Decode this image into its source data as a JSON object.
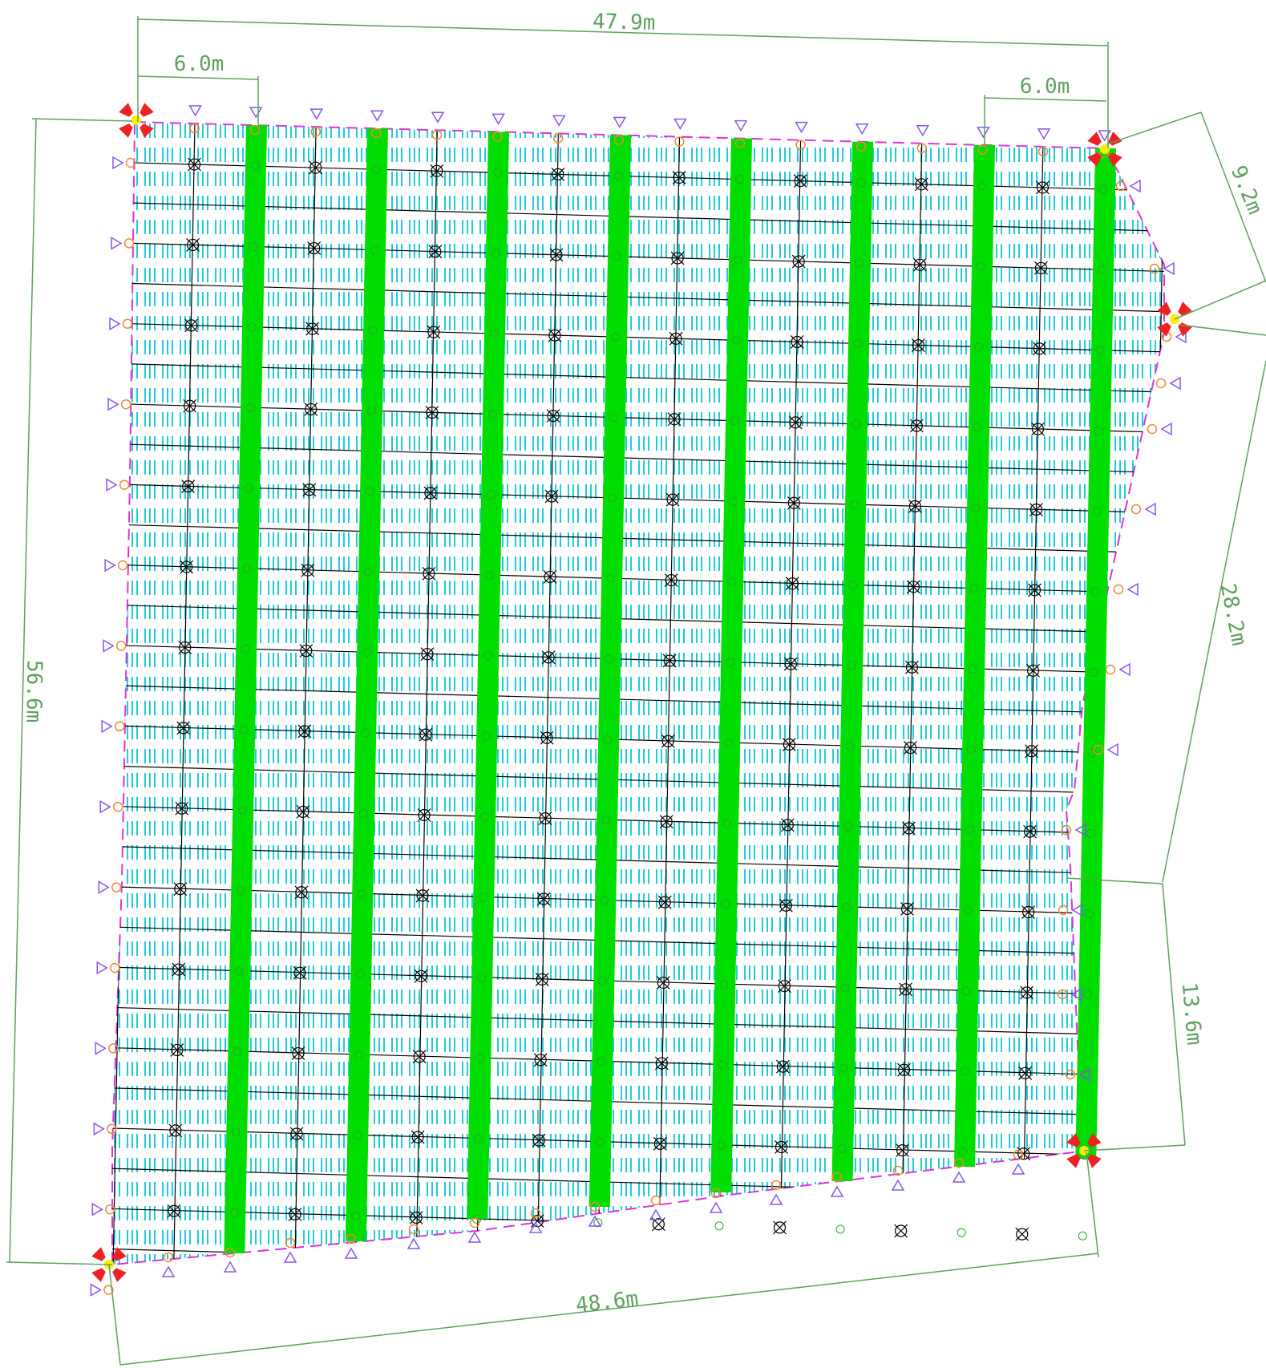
{
  "dimensions": {
    "top_width": "47.9m",
    "top_left_spacing": "6.0m",
    "top_right_spacing": "6.0m",
    "right_upper_edge": "9.2m",
    "right_middle_edge": "28.2m",
    "right_lower_edge": "13.6m",
    "left_height": "56.6m",
    "bottom_width": "48.6m"
  },
  "colors": {
    "background": "#ffffff",
    "beam": "#00dd00",
    "hatch": "#22ccdd",
    "grid": "#000000",
    "boundary": "#dd33dd",
    "dimension": "#5fa05f",
    "column_marker": "#ee8833",
    "support_triangle": "#8855ee",
    "corner_anchor_fill": "#ffee00",
    "corner_anchor_arrows": "#ee2222"
  },
  "layout_notes": {
    "beam_count": 8,
    "description_items": [
      "green-beams",
      "cyan-hatching",
      "black-grid",
      "column-markers",
      "support-triangles",
      "dimension-lines"
    ]
  }
}
